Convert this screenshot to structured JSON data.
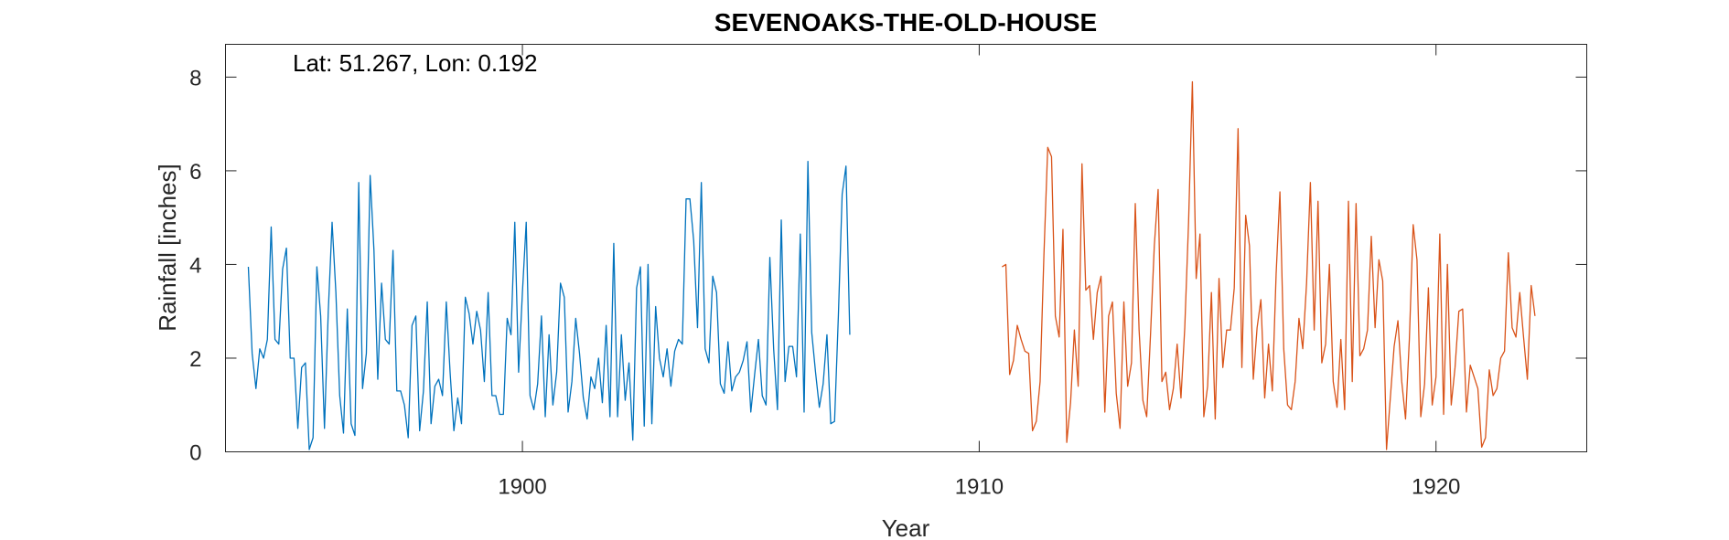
{
  "chart_data": {
    "type": "line",
    "title": "SEVENOAKS-THE-OLD-HOUSE",
    "annotation": "Lat: 51.267, Lon: 0.192",
    "xlabel": "Year",
    "ylabel": "Rainfall [inches]",
    "xlim": [
      1893.5,
      1923.3
    ],
    "ylim": [
      0,
      8.7
    ],
    "xticks": [
      1900,
      1910,
      1920
    ],
    "yticks": [
      0,
      2,
      4,
      6,
      8
    ],
    "grid": false,
    "colors": {
      "series1": "#0072BD",
      "series2": "#D95319",
      "axis": "#262626"
    },
    "series": [
      {
        "start_year": 1894.0,
        "step_months": 1,
        "values": [
          3.95,
          2.1,
          1.35,
          2.2,
          2.0,
          2.4,
          4.8,
          2.4,
          2.3,
          3.9,
          4.35,
          2.0,
          2.0,
          0.5,
          1.8,
          1.9,
          0.05,
          0.3,
          3.95,
          2.9,
          0.5,
          3.0,
          4.9,
          3.4,
          1.2,
          0.4,
          3.05,
          0.6,
          0.35,
          5.75,
          1.35,
          2.1,
          5.9,
          4.3,
          1.55,
          3.6,
          2.4,
          2.3,
          4.3,
          1.3,
          1.3,
          1.0,
          0.3,
          2.7,
          2.9,
          0.45,
          1.3,
          3.2,
          0.6,
          1.4,
          1.55,
          1.2,
          3.2,
          1.7,
          0.45,
          1.15,
          0.6,
          3.3,
          2.95,
          2.3,
          3.0,
          2.6,
          1.5,
          3.4,
          1.2,
          1.2,
          0.8,
          0.8,
          2.85,
          2.5,
          4.9,
          1.7,
          3.4,
          4.9,
          1.2,
          0.9,
          1.45,
          2.9,
          0.75,
          2.5,
          1.0,
          1.7,
          3.6,
          3.3,
          0.85,
          1.5,
          2.85,
          2.1,
          1.15,
          0.7,
          1.6,
          1.35,
          2.0,
          1.05,
          2.7,
          0.75,
          4.45,
          0.75,
          2.5,
          1.1,
          1.9,
          0.25,
          3.5,
          3.95,
          0.55,
          4.0,
          0.6,
          3.1,
          2.0,
          1.6,
          2.2,
          1.4,
          2.15,
          2.4,
          2.3,
          5.4,
          5.4,
          4.5,
          2.65,
          5.75,
          2.2,
          1.9,
          3.75,
          3.4,
          1.45,
          1.25,
          2.35,
          1.3,
          1.6,
          1.7,
          1.95,
          2.35,
          0.85,
          1.65,
          2.4,
          1.2,
          1.0,
          4.15,
          2.2,
          0.9,
          4.95,
          1.5,
          2.25,
          2.25,
          1.6,
          4.65,
          0.85,
          6.2,
          2.55,
          1.7,
          0.95,
          1.45,
          2.5,
          0.6,
          0.65,
          2.9,
          5.5,
          6.1,
          2.5
        ]
      },
      {
        "start_year": 1910.5,
        "step_months": 1,
        "values": [
          3.95,
          4.0,
          1.65,
          1.95,
          2.7,
          2.4,
          2.15,
          2.1,
          0.45,
          0.65,
          1.5,
          4.2,
          6.5,
          6.3,
          2.9,
          2.45,
          4.75,
          0.2,
          1.05,
          2.6,
          1.4,
          6.15,
          3.45,
          3.55,
          2.4,
          3.4,
          3.75,
          0.85,
          2.9,
          3.2,
          1.25,
          0.5,
          3.2,
          1.4,
          1.9,
          5.3,
          2.6,
          1.1,
          0.75,
          2.5,
          4.4,
          5.6,
          1.5,
          1.7,
          0.9,
          1.35,
          2.3,
          1.15,
          2.65,
          4.9,
          7.9,
          3.7,
          4.65,
          0.75,
          1.4,
          3.4,
          0.7,
          3.7,
          1.8,
          2.6,
          2.6,
          3.5,
          6.9,
          1.8,
          5.05,
          4.4,
          1.55,
          2.65,
          3.25,
          1.15,
          2.3,
          1.3,
          3.8,
          5.55,
          2.2,
          1.0,
          0.9,
          1.5,
          2.85,
          2.2,
          3.6,
          5.75,
          2.6,
          5.35,
          1.9,
          2.3,
          4.0,
          1.5,
          0.95,
          2.4,
          0.9,
          5.35,
          1.5,
          5.3,
          2.05,
          2.2,
          2.6,
          4.6,
          2.65,
          4.1,
          3.65,
          0.05,
          1.15,
          2.25,
          2.8,
          1.5,
          0.7,
          2.4,
          4.85,
          4.1,
          0.75,
          1.45,
          3.5,
          1.0,
          1.6,
          4.65,
          0.8,
          4.0,
          1.0,
          1.8,
          3.0,
          3.05,
          0.85,
          1.85,
          1.6,
          1.35,
          0.1,
          0.3,
          1.75,
          1.2,
          1.35,
          2.0,
          2.15,
          4.25,
          2.65,
          2.45,
          3.4,
          2.45,
          1.55,
          3.55,
          2.9
        ]
      }
    ]
  }
}
